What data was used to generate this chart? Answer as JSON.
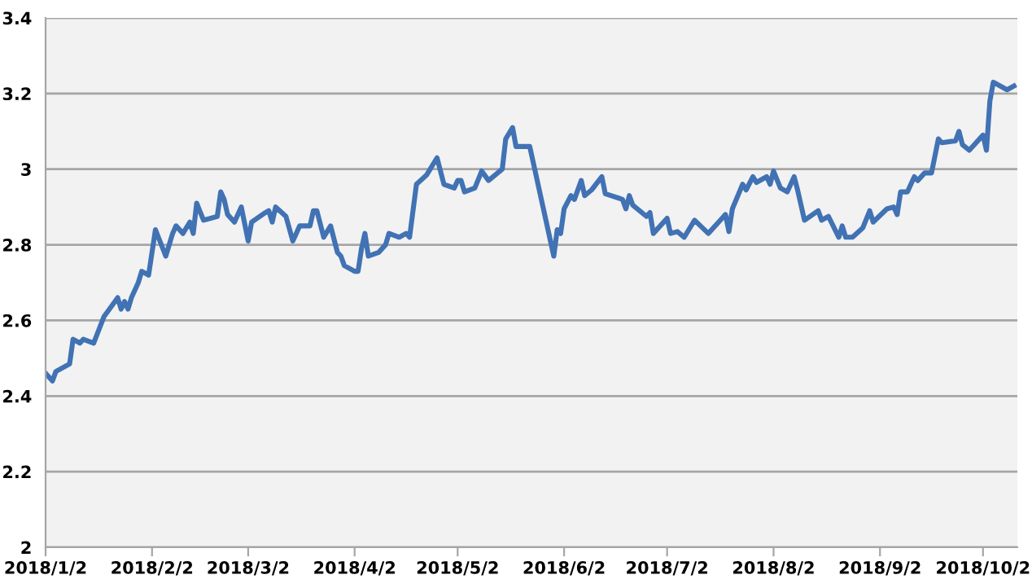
{
  "chart_data": {
    "type": "line",
    "x": [
      "2018-01-02",
      "2018-01-04",
      "2018-01-05",
      "2018-01-09",
      "2018-01-10",
      "2018-01-12",
      "2018-01-13",
      "2018-01-16",
      "2018-01-19",
      "2018-01-21",
      "2018-01-23",
      "2018-01-24",
      "2018-01-25",
      "2018-01-26",
      "2018-01-27",
      "2018-01-29",
      "2018-01-30",
      "2018-02-01",
      "2018-02-03",
      "2018-02-06",
      "2018-02-08",
      "2018-02-09",
      "2018-02-11",
      "2018-02-13",
      "2018-02-14",
      "2018-02-15",
      "2018-02-17",
      "2018-02-21",
      "2018-02-22",
      "2018-02-23",
      "2018-02-24",
      "2018-02-26",
      "2018-02-28",
      "2018-03-02",
      "2018-03-03",
      "2018-03-07",
      "2018-03-08",
      "2018-03-09",
      "2018-03-10",
      "2018-03-13",
      "2018-03-15",
      "2018-03-16",
      "2018-03-17",
      "2018-03-20",
      "2018-03-21",
      "2018-03-22",
      "2018-03-24",
      "2018-03-26",
      "2018-03-28",
      "2018-03-29",
      "2018-03-30",
      "2018-04-02",
      "2018-04-03",
      "2018-04-04",
      "2018-04-05",
      "2018-04-06",
      "2018-04-09",
      "2018-04-11",
      "2018-04-12",
      "2018-04-15",
      "2018-04-17",
      "2018-04-18",
      "2018-04-20",
      "2018-04-23",
      "2018-04-26",
      "2018-04-28",
      "2018-05-01",
      "2018-05-02",
      "2018-05-03",
      "2018-05-04",
      "2018-05-07",
      "2018-05-09",
      "2018-05-11",
      "2018-05-15",
      "2018-05-16",
      "2018-05-18",
      "2018-05-19",
      "2018-05-23",
      "2018-05-30",
      "2018-05-31",
      "2018-06-01",
      "2018-06-02",
      "2018-06-04",
      "2018-06-05",
      "2018-06-07",
      "2018-06-08",
      "2018-06-10",
      "2018-06-13",
      "2018-06-14",
      "2018-06-19",
      "2018-06-20",
      "2018-06-21",
      "2018-06-22",
      "2018-06-26",
      "2018-06-27",
      "2018-06-28",
      "2018-07-02",
      "2018-07-03",
      "2018-07-05",
      "2018-07-07",
      "2018-07-10",
      "2018-07-14",
      "2018-07-17",
      "2018-07-19",
      "2018-07-20",
      "2018-07-21",
      "2018-07-24",
      "2018-07-25",
      "2018-07-27",
      "2018-07-28",
      "2018-07-31",
      "2018-08-01",
      "2018-08-02",
      "2018-08-04",
      "2018-08-06",
      "2018-08-08",
      "2018-08-09",
      "2018-08-11",
      "2018-08-15",
      "2018-08-16",
      "2018-08-18",
      "2018-08-21",
      "2018-08-22",
      "2018-08-23",
      "2018-08-25",
      "2018-08-28",
      "2018-08-30",
      "2018-08-31",
      "2018-09-04",
      "2018-09-06",
      "2018-09-07",
      "2018-09-08",
      "2018-09-10",
      "2018-09-12",
      "2018-09-13",
      "2018-09-15",
      "2018-09-17",
      "2018-09-19",
      "2018-09-20",
      "2018-09-24",
      "2018-09-25",
      "2018-09-26",
      "2018-09-28",
      "2018-10-02",
      "2018-10-03",
      "2018-10-04",
      "2018-10-05",
      "2018-10-09",
      "2018-10-11"
    ],
    "series": [
      {
        "color": "#4172b4",
        "values": [
          2.46,
          2.44,
          2.465,
          2.485,
          2.55,
          2.54,
          2.55,
          2.54,
          2.61,
          2.635,
          2.66,
          2.63,
          2.65,
          2.63,
          2.66,
          2.7,
          2.73,
          2.72,
          2.84,
          2.77,
          2.83,
          2.85,
          2.83,
          2.86,
          2.83,
          2.91,
          2.865,
          2.875,
          2.94,
          2.92,
          2.88,
          2.86,
          2.9,
          2.81,
          2.86,
          2.885,
          2.89,
          2.86,
          2.9,
          2.875,
          2.81,
          2.83,
          2.85,
          2.85,
          2.89,
          2.89,
          2.82,
          2.85,
          2.78,
          2.77,
          2.745,
          2.73,
          2.73,
          2.79,
          2.83,
          2.77,
          2.78,
          2.8,
          2.83,
          2.82,
          2.83,
          2.82,
          2.96,
          2.985,
          3.03,
          2.96,
          2.95,
          2.97,
          2.97,
          2.94,
          2.95,
          2.995,
          2.97,
          3.0,
          3.08,
          3.11,
          3.06,
          3.06,
          2.77,
          2.84,
          2.83,
          2.895,
          2.93,
          2.92,
          2.97,
          2.93,
          2.945,
          2.98,
          2.935,
          2.92,
          2.895,
          2.93,
          2.905,
          2.875,
          2.885,
          2.83,
          2.87,
          2.83,
          2.835,
          2.82,
          2.865,
          2.83,
          2.86,
          2.88,
          2.835,
          2.895,
          2.96,
          2.945,
          2.98,
          2.965,
          2.98,
          2.96,
          2.995,
          2.95,
          2.94,
          2.98,
          2.945,
          2.865,
          2.89,
          2.865,
          2.875,
          2.82,
          2.85,
          2.82,
          2.82,
          2.845,
          2.89,
          2.86,
          2.895,
          2.9,
          2.88,
          2.94,
          2.94,
          2.98,
          2.97,
          2.99,
          2.99,
          3.08,
          3.07,
          3.075,
          3.1,
          3.065,
          3.05,
          3.09,
          3.05,
          3.18,
          3.23,
          3.21,
          3.22
        ]
      }
    ],
    "xlim": [
      "2018-01-02",
      "2018-10-12"
    ],
    "xticks": [
      {
        "value": "2018-01-02",
        "label": "2018/1/2"
      },
      {
        "value": "2018-02-02",
        "label": "2018/2/2"
      },
      {
        "value": "2018-03-02",
        "label": "2018/3/2"
      },
      {
        "value": "2018-04-02",
        "label": "2018/4/2"
      },
      {
        "value": "2018-05-02",
        "label": "2018/5/2"
      },
      {
        "value": "2018-06-02",
        "label": "2018/6/2"
      },
      {
        "value": "2018-07-02",
        "label": "2018/7/2"
      },
      {
        "value": "2018-08-02",
        "label": "2018/8/2"
      },
      {
        "value": "2018-09-02",
        "label": "2018/9/2"
      },
      {
        "value": "2018-10-02",
        "label": "2018/10/2"
      }
    ],
    "ylim": [
      2,
      3.4
    ],
    "yticks": [
      2,
      2.2,
      2.4,
      2.6,
      2.8,
      3,
      3.2,
      3.4
    ],
    "grid": "y",
    "marker": "none",
    "line_style": "solid"
  }
}
